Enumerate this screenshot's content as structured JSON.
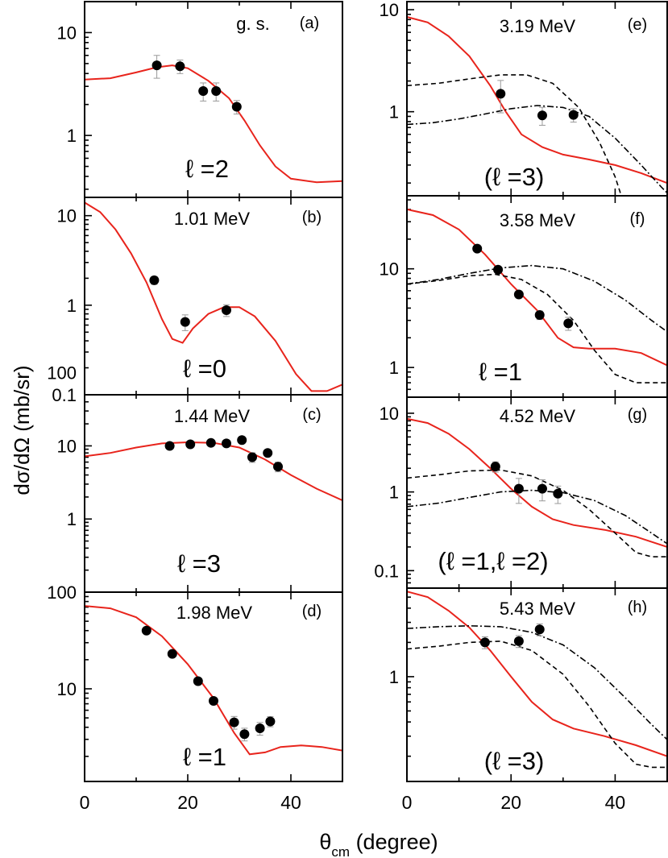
{
  "figure": {
    "ylabel": "dσ/dΩ (mb/sr)",
    "xlabel_main": "θ",
    "xlabel_sub": "cm",
    "xlabel_rest": " (degree)"
  },
  "chart_data": [
    {
      "type": "line",
      "tag": "(a)",
      "state": "g. s.",
      "lval": "ℓ =2",
      "xlim": [
        0,
        50
      ],
      "ylim": [
        0.25,
        20
      ],
      "log_y": true,
      "yticks": [
        1,
        10
      ],
      "yticklabels": [
        "1",
        "10"
      ],
      "xticks": [],
      "points": [
        [
          14,
          4.8
        ],
        [
          18.5,
          4.7
        ],
        [
          23,
          2.7
        ],
        [
          25.5,
          2.7
        ],
        [
          29.5,
          1.9
        ]
      ],
      "errors": [
        0.25,
        0.15,
        0.2,
        0.2,
        0.15
      ],
      "series": [
        {
          "style": "solid",
          "points": [
            [
              0,
              3.5
            ],
            [
              5,
              3.6
            ],
            [
              10,
              4.1
            ],
            [
              14,
              4.6
            ],
            [
              17,
              4.8
            ],
            [
              20,
              4.5
            ],
            [
              24,
              3.4
            ],
            [
              28,
              2.3
            ],
            [
              31,
              1.4
            ],
            [
              34,
              0.8
            ],
            [
              37,
              0.5
            ],
            [
              40,
              0.38
            ],
            [
              45,
              0.35
            ],
            [
              50,
              0.36
            ]
          ]
        }
      ]
    },
    {
      "type": "line",
      "tag": "(b)",
      "state": "1.01 MeV",
      "lval": "ℓ =0",
      "xlim": [
        0,
        50
      ],
      "ylim": [
        0.1,
        16
      ],
      "log_y": true,
      "yticks": [
        0.1,
        1,
        10
      ],
      "yticklabels": [
        "0.1",
        "1",
        "10"
      ],
      "xticks": [],
      "points": [
        [
          13.5,
          1.9
        ],
        [
          19.5,
          0.65
        ],
        [
          27.5,
          0.88
        ]
      ],
      "errors": [
        0.1,
        0.2,
        0.15
      ],
      "series": [
        {
          "style": "solid",
          "points": [
            [
              0,
              14
            ],
            [
              3,
              11
            ],
            [
              6,
              7
            ],
            [
              9,
              3.8
            ],
            [
              12,
              1.8
            ],
            [
              15,
              0.7
            ],
            [
              17,
              0.42
            ],
            [
              19,
              0.38
            ],
            [
              21,
              0.55
            ],
            [
              24,
              0.8
            ],
            [
              27,
              0.95
            ],
            [
              30,
              0.95
            ],
            [
              33,
              0.75
            ],
            [
              37,
              0.4
            ],
            [
              41,
              0.17
            ],
            [
              44,
              0.11
            ],
            [
              47,
              0.11
            ],
            [
              50,
              0.13
            ]
          ]
        }
      ]
    },
    {
      "type": "line",
      "tag": "(c)",
      "state": "1.44 MeV",
      "lval": "ℓ =3",
      "xlim": [
        0,
        50
      ],
      "ylim": [
        0.1,
        50
      ],
      "log_y": true,
      "yticks": [
        1,
        10,
        100
      ],
      "yticklabels": [
        "1",
        "10",
        "100"
      ],
      "xticks": [],
      "points": [
        [
          16.5,
          10
        ],
        [
          20.5,
          10.5
        ],
        [
          24.5,
          11
        ],
        [
          27.5,
          10.8
        ],
        [
          30.5,
          12
        ],
        [
          32.5,
          7
        ],
        [
          35.5,
          8
        ],
        [
          37.5,
          5.2
        ]
      ],
      "errors": [
        0.1,
        0.1,
        0.1,
        0.1,
        0.1,
        0.15,
        0.1,
        0.15
      ],
      "series": [
        {
          "style": "solid",
          "points": [
            [
              0,
              7.2
            ],
            [
              5,
              8
            ],
            [
              10,
              9.5
            ],
            [
              15,
              10.8
            ],
            [
              20,
              11.2
            ],
            [
              25,
              11
            ],
            [
              30,
              9.5
            ],
            [
              35,
              6.5
            ],
            [
              40,
              4
            ],
            [
              45,
              2.6
            ],
            [
              50,
              1.8
            ]
          ]
        }
      ]
    },
    {
      "type": "line",
      "tag": "(d)",
      "state": "1.98 MeV",
      "lval": "ℓ =1",
      "xlim": [
        0,
        50
      ],
      "ylim": [
        1.1,
        100
      ],
      "log_y": true,
      "yticks": [
        10,
        100
      ],
      "yticklabels": [
        "10",
        "100"
      ],
      "xticks": [
        0,
        20,
        40
      ],
      "xticklabels": [
        "0",
        "20",
        "40"
      ],
      "points": [
        [
          12,
          40
        ],
        [
          17,
          23
        ],
        [
          22,
          12
        ],
        [
          25,
          7.5
        ],
        [
          29,
          4.5
        ],
        [
          31,
          3.4
        ],
        [
          34,
          3.9
        ],
        [
          36,
          4.6
        ]
      ],
      "errors": [
        0.05,
        0.05,
        0.08,
        0.08,
        0.15,
        0.15,
        0.15,
        0.12
      ],
      "series": [
        {
          "style": "solid",
          "points": [
            [
              0,
              72
            ],
            [
              5,
              68
            ],
            [
              10,
              55
            ],
            [
              15,
              35
            ],
            [
              20,
              18
            ],
            [
              25,
              8
            ],
            [
              29,
              3.5
            ],
            [
              32,
              2.1
            ],
            [
              35,
              2.2
            ],
            [
              38,
              2.5
            ],
            [
              42,
              2.6
            ],
            [
              46,
              2.5
            ],
            [
              50,
              2.3
            ]
          ]
        }
      ]
    },
    {
      "type": "line",
      "tag": "(e)",
      "state": "3.19 MeV",
      "lval": "(ℓ =3)",
      "xlim": [
        0,
        50
      ],
      "ylim": [
        0.15,
        12
      ],
      "log_y": true,
      "yticks": [
        1,
        10
      ],
      "yticklabels": [
        "1",
        "10"
      ],
      "xticks": [],
      "points": [
        [
          18,
          1.5
        ],
        [
          26,
          0.92
        ],
        [
          32,
          0.93
        ]
      ],
      "errors": [
        0.35,
        0.2,
        0.15
      ],
      "series": [
        {
          "style": "solid",
          "points": [
            [
              0,
              8.5
            ],
            [
              4,
              7.5
            ],
            [
              8,
              5.5
            ],
            [
              12,
              3.5
            ],
            [
              16,
              1.8
            ],
            [
              19,
              1
            ],
            [
              22,
              0.6
            ],
            [
              26,
              0.45
            ],
            [
              30,
              0.38
            ],
            [
              35,
              0.34
            ],
            [
              40,
              0.3
            ],
            [
              45,
              0.25
            ],
            [
              50,
              0.2
            ]
          ]
        },
        {
          "style": "dash",
          "points": [
            [
              0,
              1.8
            ],
            [
              6,
              1.9
            ],
            [
              12,
              2.1
            ],
            [
              18,
              2.3
            ],
            [
              23,
              2.3
            ],
            [
              28,
              1.9
            ],
            [
              33,
              1.1
            ],
            [
              37,
              0.5
            ],
            [
              40,
              0.23
            ],
            [
              41,
              0.16
            ]
          ]
        },
        {
          "style": "dashdot",
          "points": [
            [
              0,
              0.75
            ],
            [
              5,
              0.78
            ],
            [
              10,
              0.85
            ],
            [
              15,
              0.95
            ],
            [
              20,
              1.07
            ],
            [
              25,
              1.15
            ],
            [
              30,
              1.1
            ],
            [
              35,
              0.9
            ],
            [
              40,
              0.55
            ],
            [
              45,
              0.3
            ],
            [
              49,
              0.18
            ],
            [
              50,
              0.16
            ]
          ]
        }
      ]
    },
    {
      "type": "line",
      "tag": "(f)",
      "state": "3.58 MeV",
      "lval": "ℓ =1",
      "xlim": [
        0,
        50
      ],
      "ylim": [
        0.5,
        55
      ],
      "log_y": true,
      "yticks": [
        1,
        10
      ],
      "yticklabels": [
        "1",
        "10"
      ],
      "xticks": [],
      "points": [
        [
          13.5,
          16
        ],
        [
          17.5,
          9.8
        ],
        [
          21.5,
          5.5
        ],
        [
          25.5,
          3.4
        ],
        [
          31,
          2.8
        ]
      ],
      "errors": [
        0.05,
        0.05,
        0.08,
        0.1,
        0.15
      ],
      "series": [
        {
          "style": "solid",
          "points": [
            [
              0,
              40
            ],
            [
              5,
              35
            ],
            [
              10,
              25
            ],
            [
              15,
              14
            ],
            [
              20,
              7
            ],
            [
              25,
              3.8
            ],
            [
              29,
              2
            ],
            [
              32,
              1.6
            ],
            [
              35,
              1.55
            ],
            [
              40,
              1.55
            ],
            [
              45,
              1.4
            ],
            [
              50,
              1.05
            ]
          ]
        },
        {
          "style": "dash",
          "points": [
            [
              0,
              7
            ],
            [
              6,
              7.6
            ],
            [
              12,
              8.5
            ],
            [
              17,
              8.8
            ],
            [
              22,
              7.8
            ],
            [
              27,
              5.5
            ],
            [
              32,
              3
            ],
            [
              36,
              1.5
            ],
            [
              40,
              0.85
            ],
            [
              44,
              0.7
            ],
            [
              50,
              0.7
            ]
          ]
        },
        {
          "style": "dashdot",
          "points": [
            [
              0,
              7
            ],
            [
              6,
              7.8
            ],
            [
              12,
              9
            ],
            [
              18,
              10.2
            ],
            [
              24,
              10.8
            ],
            [
              30,
              10
            ],
            [
              36,
              7.5
            ],
            [
              42,
              4.8
            ],
            [
              47,
              3
            ],
            [
              50,
              2.3
            ]
          ]
        }
      ]
    },
    {
      "type": "line",
      "tag": "(g)",
      "state": "4.52 MeV",
      "lval": "(ℓ =1,ℓ =2)",
      "xlim": [
        0,
        50
      ],
      "ylim": [
        0.06,
        16
      ],
      "log_y": true,
      "yticks": [
        0.1,
        1,
        10
      ],
      "yticklabels": [
        "0.1",
        "1",
        "10"
      ],
      "xticks": [],
      "points": [
        [
          17,
          2.1
        ],
        [
          21.5,
          1.1
        ],
        [
          26,
          1.1
        ],
        [
          29,
          0.95
        ]
      ],
      "errors": [
        0.15,
        0.35,
        0.3,
        0.25
      ],
      "series": [
        {
          "style": "solid",
          "points": [
            [
              0,
              8.5
            ],
            [
              4,
              7.5
            ],
            [
              8,
              5.5
            ],
            [
              12,
              3.5
            ],
            [
              16,
              2
            ],
            [
              20,
              1.1
            ],
            [
              24,
              0.65
            ],
            [
              28,
              0.45
            ],
            [
              32,
              0.38
            ],
            [
              38,
              0.33
            ],
            [
              44,
              0.27
            ],
            [
              50,
              0.2
            ]
          ]
        },
        {
          "style": "dash",
          "points": [
            [
              0,
              1.5
            ],
            [
              6,
              1.65
            ],
            [
              12,
              1.85
            ],
            [
              18,
              1.9
            ],
            [
              24,
              1.6
            ],
            [
              30,
              1.05
            ],
            [
              35,
              0.6
            ],
            [
              40,
              0.3
            ],
            [
              44,
              0.17
            ],
            [
              47,
              0.15
            ],
            [
              50,
              0.15
            ]
          ]
        },
        {
          "style": "dashdot",
          "points": [
            [
              0,
              0.65
            ],
            [
              6,
              0.72
            ],
            [
              12,
              0.85
            ],
            [
              18,
              1
            ],
            [
              24,
              1.05
            ],
            [
              30,
              0.98
            ],
            [
              36,
              0.78
            ],
            [
              42,
              0.5
            ],
            [
              47,
              0.3
            ],
            [
              50,
              0.22
            ]
          ]
        }
      ]
    },
    {
      "type": "line",
      "tag": "(h)",
      "state": "5.43 MeV",
      "lval": "(ℓ =3)",
      "xlim": [
        0,
        50
      ],
      "ylim": [
        0.12,
        6
      ],
      "log_y": true,
      "yticks": [
        1
      ],
      "yticklabels": [
        "1"
      ],
      "xticks": [
        0,
        20,
        40
      ],
      "xticklabels": [
        "0",
        "20",
        "40"
      ],
      "points": [
        [
          15,
          2
        ],
        [
          21.5,
          2.05
        ],
        [
          25.5,
          2.6
        ]
      ],
      "errors": [
        0.12,
        0.12,
        0.12
      ],
      "series": [
        {
          "style": "solid",
          "points": [
            [
              0,
              5.6
            ],
            [
              4,
              5
            ],
            [
              8,
              3.8
            ],
            [
              12,
              2.7
            ],
            [
              16,
              1.7
            ],
            [
              20,
              1
            ],
            [
              24,
              0.6
            ],
            [
              28,
              0.42
            ],
            [
              32,
              0.35
            ],
            [
              38,
              0.3
            ],
            [
              44,
              0.25
            ],
            [
              50,
              0.2
            ]
          ]
        },
        {
          "style": "dash",
          "points": [
            [
              0,
              1.75
            ],
            [
              6,
              1.85
            ],
            [
              12,
              2
            ],
            [
              18,
              2.05
            ],
            [
              24,
              1.7
            ],
            [
              30,
              1.05
            ],
            [
              35,
              0.55
            ],
            [
              40,
              0.26
            ],
            [
              44,
              0.17
            ],
            [
              47,
              0.16
            ],
            [
              50,
              0.16
            ]
          ]
        },
        {
          "style": "dashdot",
          "points": [
            [
              0,
              2.65
            ],
            [
              6,
              2.75
            ],
            [
              12,
              2.8
            ],
            [
              18,
              2.75
            ],
            [
              24,
              2.45
            ],
            [
              30,
              1.9
            ],
            [
              36,
              1.2
            ],
            [
              42,
              0.65
            ],
            [
              47,
              0.38
            ],
            [
              50,
              0.28
            ]
          ]
        }
      ]
    }
  ]
}
